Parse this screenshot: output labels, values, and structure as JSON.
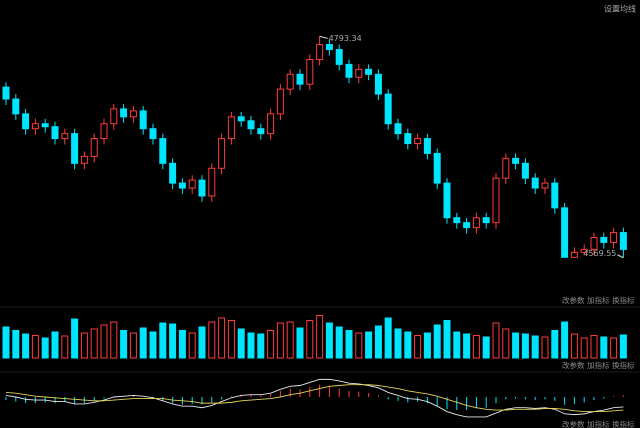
{
  "toolbar": {
    "set_ma": "设置均线"
  },
  "panel_buttons": [
    [
      "改参数",
      "加指标",
      "换指标"
    ],
    [
      "改参数",
      "加指标",
      "换指标"
    ],
    [
      "改参数",
      "加指标",
      "换指标"
    ]
  ],
  "chart_data": [
    {
      "type": "candlestick",
      "up_color": "#ff3b3b",
      "down_color": "#00e5ff",
      "annotations": {
        "high": "4793.34",
        "low": "4569.55"
      },
      "ylim": [
        4542,
        4822
      ],
      "open": [
        4742,
        4730,
        4715,
        4700,
        4705,
        4702,
        4690,
        4695,
        4665,
        4672,
        4690,
        4705,
        4720,
        4712,
        4718,
        4700,
        4690,
        4665,
        4645,
        4640,
        4648,
        4632,
        4660,
        4690,
        4712,
        4708,
        4700,
        4695,
        4715,
        4740,
        4755,
        4745,
        4770,
        4785,
        4780,
        4765,
        4752,
        4760,
        4755,
        4735,
        4705,
        4695,
        4685,
        4690,
        4675,
        4645,
        4610,
        4605,
        4600,
        4610,
        4605,
        4650,
        4670,
        4665,
        4650,
        4640,
        4645,
        4620,
        4570,
        4575,
        4578,
        4590,
        4585,
        4595
      ],
      "high": [
        4747,
        4735,
        4720,
        4710,
        4710,
        4707,
        4700,
        4700,
        4677,
        4695,
        4710,
        4725,
        4725,
        4723,
        4723,
        4705,
        4695,
        4670,
        4650,
        4653,
        4653,
        4665,
        4695,
        4717,
        4717,
        4713,
        4705,
        4720,
        4745,
        4760,
        4760,
        4775,
        4793.34,
        4790,
        4785,
        4770,
        4765,
        4765,
        4760,
        4740,
        4710,
        4700,
        4695,
        4695,
        4680,
        4650,
        4615,
        4610,
        4615,
        4615,
        4655,
        4675,
        4675,
        4670,
        4655,
        4650,
        4650,
        4625,
        4580,
        4583,
        4595,
        4595,
        4600,
        4600
      ],
      "low": [
        4724,
        4709,
        4694,
        4694,
        4696,
        4684,
        4684,
        4659,
        4659,
        4666,
        4684,
        4699,
        4706,
        4706,
        4694,
        4684,
        4659,
        4639,
        4634,
        4634,
        4626,
        4626,
        4654,
        4684,
        4702,
        4694,
        4689,
        4689,
        4709,
        4734,
        4739,
        4739,
        4764,
        4774,
        4759,
        4746,
        4746,
        4749,
        4729,
        4699,
        4689,
        4679,
        4679,
        4669,
        4639,
        4604,
        4599,
        4594,
        4594,
        4599,
        4599,
        4644,
        4659,
        4644,
        4634,
        4634,
        4614,
        4572,
        4571,
        4572,
        4572,
        4579,
        4579,
        4569.55
      ],
      "close": [
        4730,
        4715,
        4700,
        4705,
        4702,
        4690,
        4695,
        4665,
        4672,
        4690,
        4705,
        4720,
        4712,
        4718,
        4700,
        4690,
        4665,
        4645,
        4640,
        4648,
        4632,
        4660,
        4690,
        4712,
        4708,
        4700,
        4695,
        4715,
        4740,
        4755,
        4745,
        4770,
        4785,
        4780,
        4765,
        4752,
        4760,
        4755,
        4735,
        4705,
        4695,
        4685,
        4690,
        4675,
        4645,
        4610,
        4605,
        4600,
        4610,
        4605,
        4650,
        4670,
        4665,
        4650,
        4640,
        4645,
        4620,
        4570,
        4575,
        4578,
        4590,
        4585,
        4595,
        4578
      ]
    },
    {
      "type": "volume",
      "ylim": [
        0,
        100
      ],
      "values": [
        62,
        55,
        48,
        45,
        40,
        52,
        44,
        78,
        50,
        58,
        66,
        72,
        55,
        50,
        60,
        52,
        70,
        68,
        55,
        50,
        62,
        72,
        80,
        75,
        58,
        50,
        48,
        55,
        70,
        72,
        60,
        75,
        85,
        70,
        62,
        55,
        50,
        52,
        64,
        80,
        58,
        52,
        45,
        50,
        66,
        75,
        52,
        48,
        45,
        42,
        70,
        58,
        50,
        48,
        44,
        42,
        55,
        72,
        48,
        40,
        45,
        42,
        40,
        46
      ]
    },
    {
      "type": "macd",
      "ylim": [
        -30,
        30
      ],
      "line_colors": [
        "#e8e8e8",
        "#e6d25a"
      ],
      "hist": [
        -4,
        -6,
        -8,
        -8,
        -7,
        -8,
        -6,
        -9,
        -8,
        -5,
        -2,
        1,
        1,
        2,
        0,
        -2,
        -5,
        -8,
        -10,
        -9,
        -10,
        -7,
        -3,
        1,
        3,
        3,
        2,
        4,
        8,
        11,
        10,
        13,
        16,
        14,
        11,
        8,
        7,
        5,
        2,
        -3,
        -5,
        -7,
        -6,
        -8,
        -12,
        -16,
        -17,
        -17,
        -15,
        -14,
        -8,
        -3,
        -2,
        -3,
        -4,
        -3,
        -5,
        -10,
        -9,
        -7,
        -4,
        -2,
        1,
        2
      ],
      "dif": [
        2,
        0,
        -3,
        -4,
        -4,
        -6,
        -6,
        -9,
        -9,
        -7,
        -4,
        0,
        1,
        2,
        1,
        -1,
        -5,
        -9,
        -12,
        -12,
        -14,
        -11,
        -6,
        -1,
        2,
        3,
        3,
        5,
        10,
        14,
        15,
        19,
        23,
        23,
        21,
        18,
        17,
        15,
        12,
        6,
        2,
        -2,
        -3,
        -6,
        -12,
        -19,
        -23,
        -26,
        -26,
        -26,
        -21,
        -16,
        -14,
        -14,
        -15,
        -14,
        -16,
        -22,
        -23,
        -22,
        -19,
        -17,
        -14,
        -13
      ],
      "dea": [
        6,
        5,
        3,
        1,
        0,
        -1,
        -2,
        -3,
        -4,
        -5,
        -5,
        -4,
        -3,
        -2,
        -2,
        -2,
        -2,
        -4,
        -5,
        -6,
        -8,
        -8,
        -8,
        -7,
        -5,
        -4,
        -3,
        -2,
        0,
        3,
        5,
        8,
        11,
        14,
        15,
        16,
        16,
        16,
        15,
        13,
        11,
        8,
        6,
        4,
        1,
        -3,
        -7,
        -11,
        -14,
        -16,
        -17,
        -17,
        -16,
        -16,
        -16,
        -15,
        -15,
        -16,
        -18,
        -19,
        -19,
        -19,
        -18,
        -17
      ]
    }
  ]
}
